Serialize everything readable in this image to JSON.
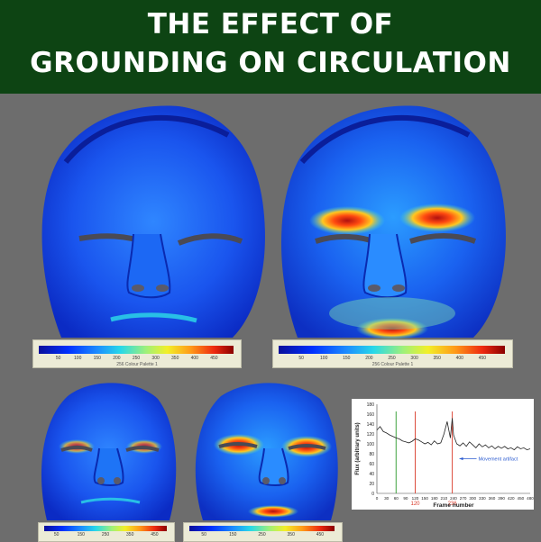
{
  "header": {
    "line1": "THE EFFECT OF",
    "line2": "GROUNDING ON CIRCULATION"
  },
  "colorbar": {
    "ticks": [
      "50",
      "100",
      "150",
      "200",
      "250",
      "300",
      "350",
      "400",
      "450"
    ],
    "caption": "256 Colour Palette 1"
  },
  "chart_data": {
    "type": "line",
    "ylabel": "Flux (arbitrary units)",
    "xlabel": "Frame number",
    "ylim": [
      0,
      180
    ],
    "xlim": [
      0,
      480
    ],
    "yticks": [
      "0",
      "20",
      "40",
      "60",
      "80",
      "100",
      "120",
      "140",
      "160",
      "180"
    ],
    "xticks": [
      "0",
      "30",
      "60",
      "90",
      "120",
      "150",
      "180",
      "210",
      "240",
      "270",
      "300",
      "330",
      "360",
      "390",
      "420",
      "450",
      "480"
    ],
    "markers": [
      {
        "x": 60,
        "color": "#2a9a2a",
        "label": ""
      },
      {
        "x": 120,
        "color": "#d93a2a",
        "label": "120"
      },
      {
        "x": 236,
        "color": "#d93a2a",
        "label": "236"
      }
    ],
    "annotation": "Movement artifact",
    "series": [
      {
        "x": [
          0,
          10,
          20,
          30,
          40,
          50,
          60,
          70,
          80,
          90,
          100,
          110,
          120,
          130,
          140,
          150,
          160,
          170,
          180,
          190,
          200,
          210,
          220,
          230,
          236,
          240,
          250,
          260,
          270,
          280,
          290,
          300,
          310,
          320,
          330,
          340,
          350,
          360,
          370,
          380,
          390,
          400,
          410,
          420,
          430,
          440,
          450,
          460,
          470,
          480
        ],
        "values": [
          128,
          135,
          125,
          122,
          118,
          115,
          112,
          110,
          106,
          104,
          102,
          105,
          110,
          108,
          104,
          100,
          103,
          98,
          106,
          100,
          102,
          120,
          145,
          112,
          152,
          118,
          100,
          96,
          102,
          95,
          104,
          98,
          92,
          100,
          94,
          98,
          92,
          96,
          90,
          95,
          91,
          95,
          90,
          92,
          88,
          94,
          90,
          92,
          88,
          90
        ]
      }
    ]
  }
}
